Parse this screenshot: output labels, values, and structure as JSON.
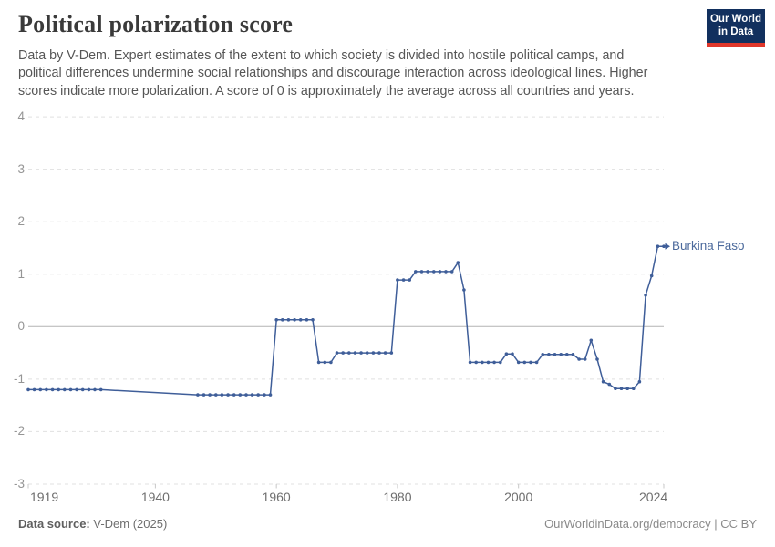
{
  "header": {
    "title": "Political polarization score",
    "subtitle_lines": [
      "Data by V-Dem. Expert estimates of the extent to which society is divided into hostile political camps, and",
      "political differences undermine social relationships and discourage interaction across ideological lines. Higher",
      "scores indicate more polarization. A score of 0 is approximately the average across all countries and years."
    ]
  },
  "logo": {
    "line1": "Our World",
    "line2": "in Data",
    "bg_color": "#12305e",
    "stripe_color": "#e0372a"
  },
  "footer": {
    "source_label": "Data source:",
    "source_value": "V-Dem (2025)",
    "link_left": "OurWorldinData.org/democracy",
    "separator": "|",
    "link_right": "CC BY"
  },
  "chart_data": {
    "type": "line",
    "title": "Political polarization score",
    "series_label": "Burkina Faso",
    "series_color": "#3f5e99",
    "label_color": "#4c6a9c",
    "grid_color": "#e0e0e0",
    "zero_line_color": "#b3b3b3",
    "xlim": [
      1919,
      2024
    ],
    "ylim": [
      -3,
      4
    ],
    "x_ticks": [
      1919,
      1940,
      1960,
      1980,
      2000,
      2024
    ],
    "y_ticks": [
      4,
      3,
      2,
      1,
      0,
      -1,
      -2,
      -3
    ],
    "grid": "dashed horizontal, solid zero line",
    "legend_position": "end-of-line label",
    "data_gap_note": "no observations 1932-1946; line interpolated without markers",
    "points": [
      [
        1919,
        -1.2
      ],
      [
        1920,
        -1.2
      ],
      [
        1921,
        -1.2
      ],
      [
        1922,
        -1.2
      ],
      [
        1923,
        -1.2
      ],
      [
        1924,
        -1.2
      ],
      [
        1925,
        -1.2
      ],
      [
        1926,
        -1.2
      ],
      [
        1927,
        -1.2
      ],
      [
        1928,
        -1.2
      ],
      [
        1929,
        -1.2
      ],
      [
        1930,
        -1.2
      ],
      [
        1931,
        -1.2
      ],
      [
        1947,
        -1.3
      ],
      [
        1948,
        -1.3
      ],
      [
        1949,
        -1.3
      ],
      [
        1950,
        -1.3
      ],
      [
        1951,
        -1.3
      ],
      [
        1952,
        -1.3
      ],
      [
        1953,
        -1.3
      ],
      [
        1954,
        -1.3
      ],
      [
        1955,
        -1.3
      ],
      [
        1956,
        -1.3
      ],
      [
        1957,
        -1.3
      ],
      [
        1958,
        -1.3
      ],
      [
        1959,
        -1.3
      ],
      [
        1960,
        0.13
      ],
      [
        1961,
        0.13
      ],
      [
        1962,
        0.13
      ],
      [
        1963,
        0.13
      ],
      [
        1964,
        0.13
      ],
      [
        1965,
        0.13
      ],
      [
        1966,
        0.13
      ],
      [
        1967,
        -0.68
      ],
      [
        1968,
        -0.68
      ],
      [
        1969,
        -0.68
      ],
      [
        1970,
        -0.5
      ],
      [
        1971,
        -0.5
      ],
      [
        1972,
        -0.5
      ],
      [
        1973,
        -0.5
      ],
      [
        1974,
        -0.5
      ],
      [
        1975,
        -0.5
      ],
      [
        1976,
        -0.5
      ],
      [
        1977,
        -0.5
      ],
      [
        1978,
        -0.5
      ],
      [
        1979,
        -0.5
      ],
      [
        1980,
        0.89
      ],
      [
        1981,
        0.89
      ],
      [
        1982,
        0.89
      ],
      [
        1983,
        1.05
      ],
      [
        1984,
        1.05
      ],
      [
        1985,
        1.05
      ],
      [
        1986,
        1.05
      ],
      [
        1987,
        1.05
      ],
      [
        1988,
        1.05
      ],
      [
        1989,
        1.05
      ],
      [
        1990,
        1.22
      ],
      [
        1991,
        0.7
      ],
      [
        1992,
        -0.68
      ],
      [
        1993,
        -0.68
      ],
      [
        1994,
        -0.68
      ],
      [
        1995,
        -0.68
      ],
      [
        1996,
        -0.68
      ],
      [
        1997,
        -0.68
      ],
      [
        1998,
        -0.52
      ],
      [
        1999,
        -0.52
      ],
      [
        2000,
        -0.68
      ],
      [
        2001,
        -0.68
      ],
      [
        2002,
        -0.68
      ],
      [
        2003,
        -0.68
      ],
      [
        2004,
        -0.53
      ],
      [
        2005,
        -0.53
      ],
      [
        2006,
        -0.53
      ],
      [
        2007,
        -0.53
      ],
      [
        2008,
        -0.53
      ],
      [
        2009,
        -0.53
      ],
      [
        2010,
        -0.62
      ],
      [
        2011,
        -0.62
      ],
      [
        2012,
        -0.26
      ],
      [
        2013,
        -0.62
      ],
      [
        2014,
        -1.05
      ],
      [
        2015,
        -1.1
      ],
      [
        2016,
        -1.18
      ],
      [
        2017,
        -1.18
      ],
      [
        2018,
        -1.18
      ],
      [
        2019,
        -1.18
      ],
      [
        2020,
        -1.05
      ],
      [
        2021,
        0.6
      ],
      [
        2022,
        0.97
      ],
      [
        2023,
        1.53
      ],
      [
        2024,
        1.53
      ]
    ]
  }
}
